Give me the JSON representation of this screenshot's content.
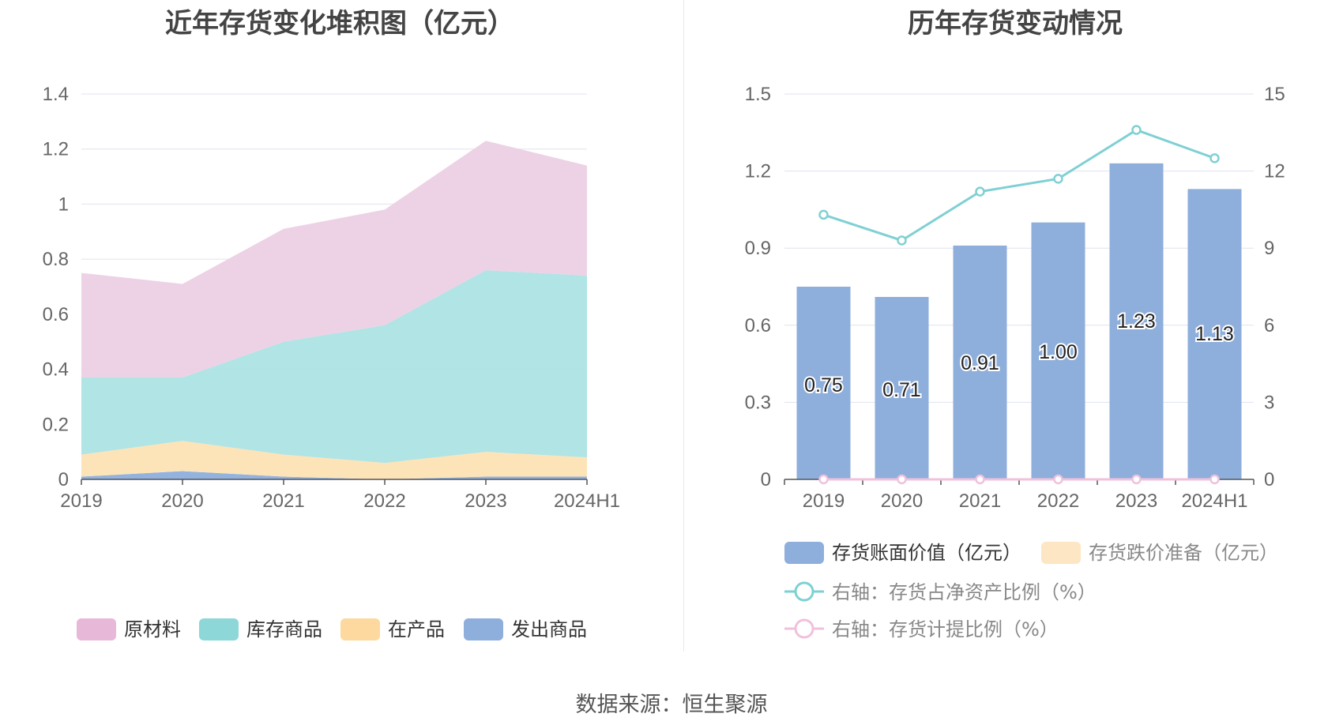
{
  "left_title": "近年存货变化堆积图（亿元）",
  "right_title": "历年存货变动情况",
  "source": "数据来源：恒生聚源",
  "chart_data": [
    {
      "type": "area",
      "stacked": true,
      "title": "近年存货变化堆积图（亿元）",
      "categories": [
        "2019",
        "2020",
        "2021",
        "2022",
        "2023",
        "2024H1"
      ],
      "ylim": [
        0,
        1.4
      ],
      "yticks": [
        "0",
        "0.2",
        "0.4",
        "0.6",
        "0.8",
        "1",
        "1.2",
        "1.4"
      ],
      "grid": true,
      "legend_position": "bottom",
      "series": [
        {
          "name": "发出商品",
          "color": "#8eaedc",
          "values": [
            0.01,
            0.03,
            0.01,
            0.0,
            0.01,
            0.01
          ]
        },
        {
          "name": "在产品",
          "color": "#fde3b4",
          "values": [
            0.08,
            0.11,
            0.08,
            0.06,
            0.09,
            0.07
          ]
        },
        {
          "name": "库存商品",
          "color": "#ace3e4",
          "values": [
            0.28,
            0.23,
            0.41,
            0.5,
            0.66,
            0.66
          ]
        },
        {
          "name": "原材料",
          "color": "#ecd0e4",
          "values": [
            0.38,
            0.34,
            0.41,
            0.42,
            0.47,
            0.4
          ]
        }
      ],
      "legend": [
        {
          "name": "原材料",
          "color": "#e7b8d8"
        },
        {
          "name": "库存商品",
          "color": "#8dd7d9"
        },
        {
          "name": "在产品",
          "color": "#fdd9a0"
        },
        {
          "name": "发出商品",
          "color": "#8eaedc"
        }
      ]
    },
    {
      "type": "bar",
      "title": "历年存货变动情况",
      "categories": [
        "2019",
        "2020",
        "2021",
        "2022",
        "2023",
        "2024H1"
      ],
      "ylim": [
        0,
        1.5
      ],
      "yticks": [
        "0",
        "0.3",
        "0.6",
        "0.9",
        "1.2",
        "1.5"
      ],
      "y2lim": [
        0,
        15
      ],
      "y2ticks": [
        "0",
        "3",
        "6",
        "9",
        "12",
        "15"
      ],
      "grid": true,
      "legend_position": "bottom",
      "series": [
        {
          "name": "存货账面价值（亿元）",
          "type": "bar",
          "axis": "left",
          "color": "#8eaedc",
          "values": [
            0.75,
            0.71,
            0.91,
            1.0,
            1.23,
            1.13
          ],
          "labels": [
            "0.75",
            "0.71",
            "0.91",
            "1.00",
            "1.23",
            "1.13"
          ]
        },
        {
          "name": "存货跌价准备（亿元）",
          "type": "bar",
          "axis": "left",
          "color": "#fde6c4",
          "values": [
            0,
            0,
            0,
            0,
            0,
            0
          ]
        },
        {
          "name": "右轴：存货占净资产比例（%）",
          "type": "line",
          "axis": "right",
          "color": "#7fd0d3",
          "values": [
            10.3,
            9.3,
            11.2,
            11.7,
            13.6,
            12.5
          ]
        },
        {
          "name": "右轴：存货计提比例（%）",
          "type": "line",
          "axis": "right",
          "color": "#f0c1dc",
          "values": [
            0,
            0,
            0,
            0,
            0,
            0
          ]
        }
      ]
    }
  ]
}
